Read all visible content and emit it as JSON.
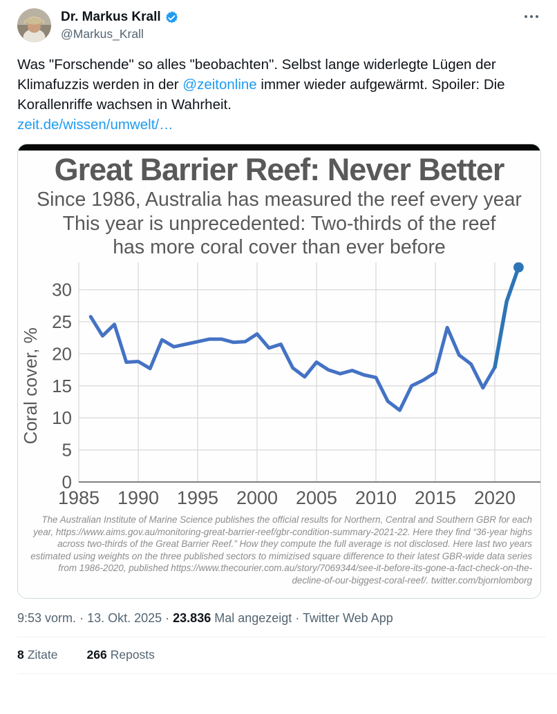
{
  "tweet": {
    "author": {
      "name": "Dr. Markus Krall",
      "handle": "@Markus_Krall"
    },
    "body": {
      "text_before_mention": "Was \"Forschende\" so alles \"beobachten\". Selbst lange widerlegte Lügen der Klimafuzzis werden in der ",
      "mention": "@zeitonline",
      "text_after_mention": " immer wieder aufgewärmt. Spoiler: Die Korallenriffe wachsen in Wahrheit.",
      "link": "zeit.de/wissen/umwelt/…"
    },
    "meta": {
      "time": "9:53 vorm.",
      "date": "13. Okt. 2025",
      "views_count": "23.836",
      "views_label": "Mal angezeigt",
      "source": "Twitter Web App",
      "separator": "·"
    },
    "stats": [
      {
        "count": "8",
        "label": "Zitate"
      },
      {
        "count": "266",
        "label": "Reposts"
      }
    ]
  },
  "chart_data": {
    "type": "line",
    "title": "Great Barrier Reef: Never Better",
    "subtitle_lines": [
      "Since 1986, Australia has measured the reef every year",
      "This year is unprecedented: Two-thirds of the reef",
      "has more coral cover than ever before"
    ],
    "xlabel": "",
    "ylabel": "Coral cover, %",
    "x": [
      1986,
      1987,
      1988,
      1989,
      1990,
      1991,
      1992,
      1993,
      1994,
      1995,
      1996,
      1997,
      1998,
      1999,
      2000,
      2001,
      2002,
      2003,
      2004,
      2005,
      2006,
      2007,
      2008,
      2009,
      2010,
      2011,
      2012,
      2013,
      2014,
      2015,
      2016,
      2017,
      2018,
      2019,
      2020,
      2021,
      2022
    ],
    "values": [
      25.8,
      22.8,
      24.6,
      18.7,
      18.8,
      17.7,
      22.2,
      21.1,
      21.5,
      21.9,
      22.3,
      22.3,
      21.8,
      21.9,
      23.1,
      20.9,
      21.5,
      17.8,
      16.4,
      18.7,
      17.5,
      16.9,
      17.4,
      16.7,
      16.3,
      12.6,
      11.2,
      15.0,
      15.9,
      17.1,
      24.1,
      19.8,
      18.4,
      14.7,
      17.9,
      28.2,
      33.5
    ],
    "estimated_from_year": 2020,
    "xticks": [
      1985,
      1990,
      1995,
      2000,
      2005,
      2010,
      2015,
      2020
    ],
    "yticks": [
      0,
      5,
      10,
      15,
      20,
      25,
      30
    ],
    "xlim": [
      1985,
      2024
    ],
    "ylim": [
      0,
      34.2
    ],
    "grid": true,
    "legend": "none",
    "colors": {
      "line": "#4472c4",
      "estimated_line": "#2e75b6",
      "grid": "#d9d9d9",
      "axis": "#7f7f7f",
      "tick_text": "#595959"
    },
    "caption": "The Australian Institute of Marine Science publishes the official results for Northern, Central and Southern GBR for each year, https://www.aims.gov.au/monitoring-great-barrier-reef/gbr-condition-summary-2021-22. Here they find “36-year highs across two-thirds of the Great Barrier Reef.” How they compute the full average is not disclosed. Here last two years estimated using weights on the three published sectors to mimizised square difference to their latest GBR-wide data series from 1986-2020, published https://www.thecourier.com.au/story/7069344/see-it-before-its-gone-a-fact-check-on-the-decline-of-our-biggest-coral-reef/. twitter.com/bjornlomborg"
  },
  "theme": {
    "accent_blue": "#1d9bf0",
    "text_primary": "#0f1419",
    "text_secondary": "#536471",
    "divider": "#eff3f4"
  }
}
